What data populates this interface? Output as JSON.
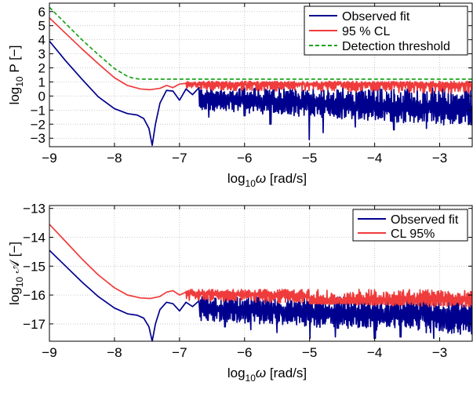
{
  "chart_data": [
    {
      "type": "line",
      "xlabel": {
        "base": "log",
        "sub": "10",
        "rest": "ω [rad/s]"
      },
      "ylabel": {
        "base": "log",
        "sub": "10",
        "rest": " P [−]"
      },
      "xlim": [
        -9,
        -2.5
      ],
      "ylim": [
        -3.6,
        6.6
      ],
      "xticks": [
        -9,
        -8,
        -7,
        -6,
        -5,
        -4,
        -3
      ],
      "xtick_labels": [
        "−9",
        "−8",
        "−7",
        "−6",
        "−5",
        "−4",
        "−3"
      ],
      "yticks": [
        -3,
        -2,
        -1,
        0,
        1,
        2,
        3,
        4,
        5,
        6
      ],
      "ytick_labels": [
        "−3",
        "−2",
        "−1",
        "0",
        "1",
        "2",
        "3",
        "4",
        "5",
        "6"
      ],
      "grid": true,
      "legend_position": "top-right",
      "series": [
        {
          "name": "Observed fit",
          "color": "#00008f",
          "style": "solid",
          "smooth": [
            [
              -9,
              3.9
            ],
            [
              -8.75,
              2.5
            ],
            [
              -8.5,
              1.2
            ],
            [
              -8.25,
              -0.05
            ],
            [
              -8.0,
              -0.9
            ],
            [
              -7.8,
              -1.25
            ],
            [
              -7.65,
              -1.35
            ],
            [
              -7.55,
              -1.6
            ],
            [
              -7.47,
              -2.3
            ],
            [
              -7.42,
              -3.5
            ],
            [
              -7.37,
              -2.0
            ],
            [
              -7.3,
              -0.5
            ],
            [
              -7.2,
              0.4
            ],
            [
              -7.1,
              0.35
            ],
            [
              -7.0,
              -0.3
            ],
            [
              -6.9,
              0.5
            ],
            [
              -6.8,
              0.1
            ],
            [
              -6.7,
              0.6
            ]
          ],
          "noise": {
            "x_start": -6.7,
            "x_end": -2.5,
            "top": 0.6,
            "base_start": -0.3,
            "base_end": -1.3,
            "min_start": -1.0,
            "min_end": -2.2,
            "deep_dips": [
              [
                -6.55,
                -1.5
              ],
              [
                -6.0,
                -1.4
              ],
              [
                -5.6,
                -2.0
              ],
              [
                -5.0,
                -3.1
              ],
              [
                -4.8,
                -2.6
              ],
              [
                -4.3,
                -2.2
              ],
              [
                -3.7,
                -2.4
              ],
              [
                -3.2,
                -2.3
              ]
            ]
          }
        },
        {
          "name": "95 % CL",
          "color": "#ef3b3b",
          "style": "solid",
          "smooth": [
            [
              -9,
              5.55
            ],
            [
              -8.75,
              4.45
            ],
            [
              -8.5,
              3.35
            ],
            [
              -8.25,
              2.3
            ],
            [
              -8.0,
              1.3
            ],
            [
              -7.8,
              0.75
            ],
            [
              -7.6,
              0.5
            ],
            [
              -7.45,
              0.45
            ],
            [
              -7.3,
              0.55
            ],
            [
              -7.2,
              0.75
            ],
            [
              -7.1,
              0.6
            ],
            [
              -7.0,
              0.85
            ],
            [
              -6.9,
              0.9
            ]
          ],
          "noise": {
            "x_start": -6.9,
            "x_end": -2.5,
            "top": 1.05,
            "base_start": 0.85,
            "base_end": 0.8,
            "min_start": 0.45,
            "min_end": 0.15
          }
        },
        {
          "name": "Detection threshold",
          "color": "#1aa31a",
          "style": "dashed",
          "smooth": [
            [
              -9,
              6.3
            ],
            [
              -8.75,
              5.15
            ],
            [
              -8.5,
              4.0
            ],
            [
              -8.25,
              2.95
            ],
            [
              -8.0,
              1.95
            ],
            [
              -7.8,
              1.4
            ],
            [
              -7.7,
              1.25
            ],
            [
              -7.6,
              1.2
            ],
            [
              -2.5,
              1.2
            ]
          ]
        }
      ]
    },
    {
      "type": "line",
      "xlabel": {
        "base": "log",
        "sub": "10",
        "rest": "ω [rad/s]"
      },
      "ylabel": {
        "base": "log",
        "sub": "10",
        "rest": " 𝒜 [−]"
      },
      "xlim": [
        -9,
        -2.5
      ],
      "ylim": [
        -17.6,
        -12.9
      ],
      "xticks": [
        -9,
        -8,
        -7,
        -6,
        -5,
        -4,
        -3
      ],
      "xtick_labels": [
        "−9",
        "−8",
        "−7",
        "−6",
        "−5",
        "−4",
        "−3"
      ],
      "yticks": [
        -17,
        -16,
        -15,
        -14,
        -13
      ],
      "ytick_labels": [
        "−17",
        "−16",
        "−15",
        "−14",
        "−13"
      ],
      "grid": true,
      "legend_position": "top-right",
      "series": [
        {
          "name": "Observed fit",
          "color": "#00008f",
          "style": "solid",
          "smooth": [
            [
              -9,
              -14.45
            ],
            [
              -8.75,
              -15.0
            ],
            [
              -8.5,
              -15.55
            ],
            [
              -8.25,
              -16.05
            ],
            [
              -8.0,
              -16.45
            ],
            [
              -7.8,
              -16.65
            ],
            [
              -7.65,
              -16.7
            ],
            [
              -7.55,
              -16.8
            ],
            [
              -7.47,
              -17.1
            ],
            [
              -7.42,
              -17.6
            ],
            [
              -7.37,
              -17.0
            ],
            [
              -7.3,
              -16.5
            ],
            [
              -7.2,
              -16.25
            ],
            [
              -7.1,
              -16.3
            ],
            [
              -7.0,
              -16.55
            ],
            [
              -6.9,
              -16.25
            ],
            [
              -6.8,
              -16.4
            ],
            [
              -6.7,
              -16.2
            ]
          ],
          "noise": {
            "x_start": -6.7,
            "x_end": -2.5,
            "top": -16.05,
            "base_start": -16.5,
            "base_end": -16.9,
            "min_start": -16.9,
            "min_end": -17.4,
            "deep_dips": [
              [
                -6.3,
                -17.1
              ],
              [
                -5.9,
                -17.2
              ],
              [
                -5.5,
                -17.3
              ],
              [
                -5.0,
                -17.5
              ],
              [
                -4.6,
                -17.45
              ],
              [
                -4.0,
                -17.5
              ],
              [
                -3.6,
                -17.45
              ],
              [
                -3.1,
                -17.5
              ]
            ]
          }
        },
        {
          "name": "CL 95%",
          "color": "#ef3b3b",
          "style": "solid",
          "smooth": [
            [
              -9,
              -13.55
            ],
            [
              -8.75,
              -14.15
            ],
            [
              -8.5,
              -14.75
            ],
            [
              -8.25,
              -15.3
            ],
            [
              -8.0,
              -15.75
            ],
            [
              -7.8,
              -16.0
            ],
            [
              -7.6,
              -16.1
            ],
            [
              -7.45,
              -16.12
            ],
            [
              -7.3,
              -16.05
            ],
            [
              -7.2,
              -15.9
            ],
            [
              -7.1,
              -15.85
            ],
            [
              -7.0,
              -16.0
            ],
            [
              -6.9,
              -15.9
            ]
          ],
          "noise": {
            "x_start": -6.9,
            "x_end": -2.5,
            "top": -15.8,
            "base_start": -15.95,
            "base_end": -16.2,
            "min_start": -16.2,
            "min_end": -16.45,
            "drop_at": -5.0,
            "drop_to_base": -16.3
          }
        }
      ]
    }
  ]
}
